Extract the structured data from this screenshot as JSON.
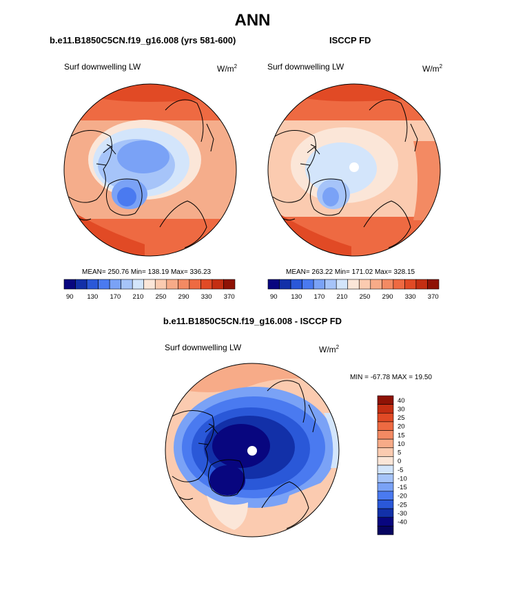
{
  "title": "ANN",
  "panels": [
    {
      "id": "model",
      "title": "b.e11.B1850C5CN.f19_g16.008 (yrs 581-600)",
      "left_label": "Surf downwelling LW",
      "units": "W/m",
      "units_exp": "2",
      "stats": "MEAN= 250.76  Min= 138.19  Max= 336.23"
    },
    {
      "id": "obs",
      "title": "ISCCP FD",
      "left_label": "Surf downwelling LW",
      "units": "W/m",
      "units_exp": "2",
      "stats": "MEAN= 263.22  Min= 171.02  Max= 328.15"
    },
    {
      "id": "diff",
      "title": "b.e11.B1850C5CN.f19_g16.008 - ISCCP FD",
      "left_label": "Surf downwelling LW",
      "units": "W/m",
      "units_exp": "2",
      "stats": "MIN = -67.78 MAX =  19.50"
    }
  ],
  "chart_data": [
    {
      "type": "heatmap",
      "projection": "north-polar-stereographic",
      "title": "b.e11.B1850C5CN.f19_g16.008 (yrs 581-600)",
      "variable": "Surf downwelling LW",
      "units": "W/m2",
      "mean": 250.76,
      "min": 138.19,
      "max": 336.23,
      "colorbar": {
        "orientation": "horizontal",
        "tick_labels": [
          "90",
          "130",
          "170",
          "210",
          "250",
          "290",
          "330",
          "370"
        ],
        "colors": [
          "#08067f",
          "#1230a8",
          "#2a58d8",
          "#4a7af0",
          "#7aa2f6",
          "#a6c4f9",
          "#d3e5fb",
          "#fbe6d8",
          "#fbcbb0",
          "#f7ab88",
          "#f38a63",
          "#ee6a42",
          "#e14a25",
          "#c42e12",
          "#8e1205"
        ]
      }
    },
    {
      "type": "heatmap",
      "projection": "north-polar-stereographic",
      "title": "ISCCP FD",
      "variable": "Surf downwelling LW",
      "units": "W/m2",
      "mean": 263.22,
      "min": 171.02,
      "max": 328.15,
      "colorbar": {
        "orientation": "horizontal",
        "tick_labels": [
          "90",
          "130",
          "170",
          "210",
          "250",
          "290",
          "330",
          "370"
        ],
        "colors": [
          "#08067f",
          "#1230a8",
          "#2a58d8",
          "#4a7af0",
          "#7aa2f6",
          "#a6c4f9",
          "#d3e5fb",
          "#fbe6d8",
          "#fbcbb0",
          "#f7ab88",
          "#f38a63",
          "#ee6a42",
          "#e14a25",
          "#c42e12",
          "#8e1205"
        ]
      }
    },
    {
      "type": "heatmap",
      "projection": "north-polar-stereographic",
      "title": "b.e11.B1850C5CN.f19_g16.008 - ISCCP FD",
      "variable": "Surf downwelling LW",
      "units": "W/m2",
      "min": -67.78,
      "max": 19.5,
      "colorbar": {
        "orientation": "vertical",
        "tick_labels": [
          "40",
          "30",
          "25",
          "20",
          "15",
          "10",
          "5",
          "0",
          "-5",
          "-10",
          "-15",
          "-20",
          "-25",
          "-30",
          "-40"
        ],
        "colors": [
          "#8e1205",
          "#c42e12",
          "#e14a25",
          "#ee6a42",
          "#f38a63",
          "#f7ab88",
          "#fbcbb0",
          "#fbe6d8",
          "#d3e5fb",
          "#a6c4f9",
          "#7aa2f6",
          "#4a7af0",
          "#2a58d8",
          "#1230a8",
          "#08067f",
          "#060460"
        ]
      }
    }
  ]
}
